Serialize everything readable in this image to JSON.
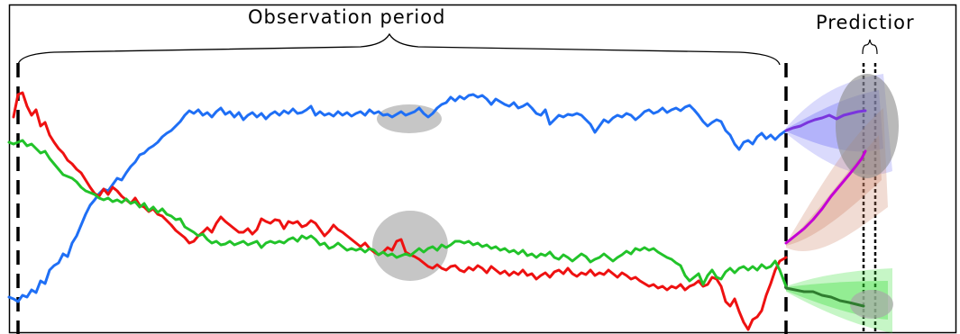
{
  "labels": {
    "observation": "Observation period",
    "prediction": "Predictior"
  },
  "colors": {
    "blue": "#1f6ff5",
    "red": "#ee1111",
    "green": "#22c32a",
    "magenta": "#c400d4",
    "purple": "#7a35dd",
    "dark_green": "#2f7d2f",
    "highlight": "#a8a8a8"
  }
}
